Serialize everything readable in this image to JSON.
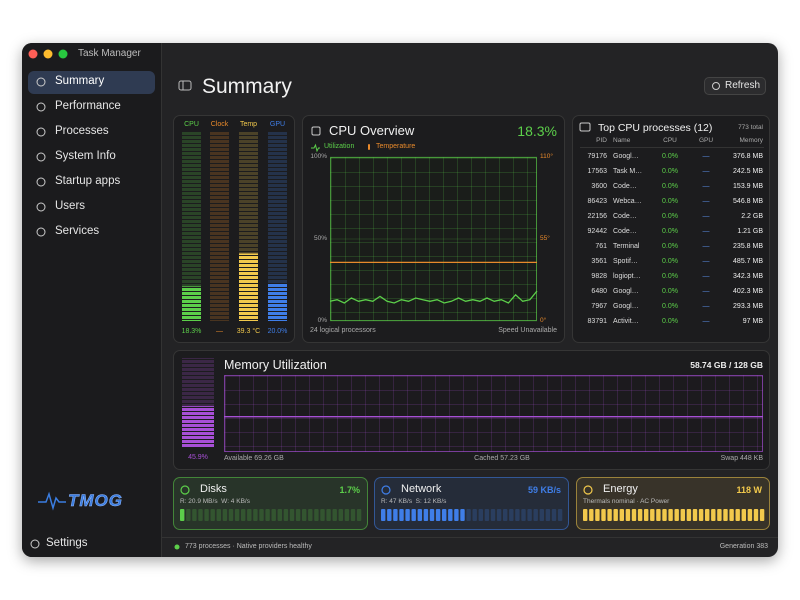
{
  "window": {
    "title": "Task Manager"
  },
  "sidebar": {
    "items": [
      "Summary",
      "Performance",
      "Processes",
      "System Info",
      "Startup apps",
      "Users",
      "Services"
    ],
    "selected": 0,
    "logo": "TMOG",
    "settings": "Settings"
  },
  "header": {
    "title": "Summary",
    "refresh": "Refresh"
  },
  "meters": [
    {
      "label": "CPU",
      "value": 18.3,
      "value_label": "18.3%",
      "color": "#5ccf4a",
      "axis": "y"
    },
    {
      "label": "Clock",
      "value": null,
      "value_label": "—",
      "color": "#e98a2b",
      "axis": "y"
    },
    {
      "label": "Temp",
      "value": 39.3,
      "value_label": "39.3 °C",
      "color": "#f2c94c",
      "axis": "y2"
    },
    {
      "label": "GPU",
      "value": 20.0,
      "value_label": "20.0%",
      "color": "#3f7ee8",
      "axis": "y"
    }
  ],
  "cpu_panel": {
    "value": 18.3,
    "value_label": "18.3%",
    "footer_left": "24 logical processors",
    "footer_right": "Speed Unavailable"
  },
  "chart_data": [
    {
      "type": "line",
      "title": "CPU Overview",
      "series": [
        {
          "name": "Utilization",
          "color": "#5ccf4a",
          "values": [
            12,
            13,
            11,
            14,
            12,
            13,
            12,
            15,
            12,
            11,
            13,
            12,
            14,
            13,
            12,
            13,
            11,
            12,
            14,
            12,
            13,
            12,
            14,
            12,
            13,
            11,
            16,
            12,
            13,
            18.3
          ]
        },
        {
          "name": "Temperature",
          "color": "#e98a2b",
          "axis": "y2",
          "values": [
            39.3,
            39.3,
            39.3,
            39.3,
            39.3,
            39.3,
            39.3,
            39.3,
            39.3,
            39.3,
            39.3,
            39.3,
            39.3,
            39.3,
            39.3,
            39.3,
            39.3,
            39.3,
            39.3,
            39.3,
            39.3,
            39.3,
            39.3,
            39.3,
            39.3,
            39.3,
            39.3,
            39.3,
            39.3,
            39.3
          ]
        }
      ],
      "ylim": [
        0,
        100
      ],
      "yticks": [
        {
          "value": 0,
          "label": "0%"
        },
        {
          "value": 50,
          "label": "50%"
        },
        {
          "value": 100,
          "label": "100%"
        }
      ],
      "y2lim": [
        0,
        110
      ],
      "y2ticks": [
        {
          "value": 0,
          "label": "0°"
        },
        {
          "value": 55,
          "label": "55°"
        },
        {
          "value": 110,
          "label": "110°"
        }
      ],
      "grid": true
    },
    {
      "type": "line",
      "title": "Memory Utilization",
      "series": [
        {
          "color": "#a74fd6",
          "values": [
            45.9,
            45.9,
            45.9,
            45.9,
            45.9,
            45.9,
            45.9,
            45.9,
            45.9,
            45.9,
            45.9,
            45.9,
            45.9,
            45.9,
            45.9,
            45.9,
            45.9,
            45.9,
            45.9,
            45.9
          ]
        }
      ],
      "ylim": [
        0,
        100
      ],
      "grid": true
    }
  ],
  "memory_panel": {
    "value": 45.9,
    "value_label": "45.9%",
    "total": "58.74 GB / 128 GB",
    "available": "Available 69.26 GB",
    "cached": "Cached 57.23 GB",
    "swap": "Swap 448 KB"
  },
  "processes": {
    "title": "Top CPU processes (12)",
    "total": "773 total",
    "columns": [
      "PID",
      "Name",
      "CPU",
      "GPU",
      "Memory"
    ],
    "rows": [
      [
        "79176",
        "Googl…",
        "0.0%",
        "—",
        "376.8 MB"
      ],
      [
        "17563",
        "Task M…",
        "0.0%",
        "—",
        "242.5 MB"
      ],
      [
        "3600",
        "Code…",
        "0.0%",
        "—",
        "153.9 MB"
      ],
      [
        "86423",
        "Webca…",
        "0.0%",
        "—",
        "546.8 MB"
      ],
      [
        "22156",
        "Code…",
        "0.0%",
        "—",
        "2.2 GB"
      ],
      [
        "92442",
        "Code…",
        "0.0%",
        "—",
        "1.21 GB"
      ],
      [
        "761",
        "Terminal",
        "0.0%",
        "—",
        "235.8 MB"
      ],
      [
        "3561",
        "Spotif…",
        "0.0%",
        "—",
        "485.7 MB"
      ],
      [
        "9828",
        "logiopt…",
        "0.0%",
        "—",
        "342.3 MB"
      ],
      [
        "6480",
        "Googl…",
        "0.0%",
        "—",
        "402.3 MB"
      ],
      [
        "7967",
        "Googl…",
        "0.0%",
        "—",
        "293.3 MB"
      ],
      [
        "83791",
        "Activit…",
        "0.0%",
        "—",
        "97 MB"
      ]
    ]
  },
  "cards": [
    {
      "title": "Disks",
      "value": "1.7%",
      "detail": "R: 20.9 MB/s  W: 4 KB/s",
      "color": "#5ccf4a"
    },
    {
      "title": "Network",
      "value": "59 KB/s",
      "detail": "R: 47 KB/s  S: 12 KB/s",
      "color": "#3f7ee8"
    },
    {
      "title": "Energy",
      "value": "118 W",
      "detail": "Thermals nominal · AC Power",
      "color": "#f2c94c"
    }
  ],
  "status": {
    "text": "773 processes · Native providers healthy",
    "generation": "Generation 383"
  }
}
